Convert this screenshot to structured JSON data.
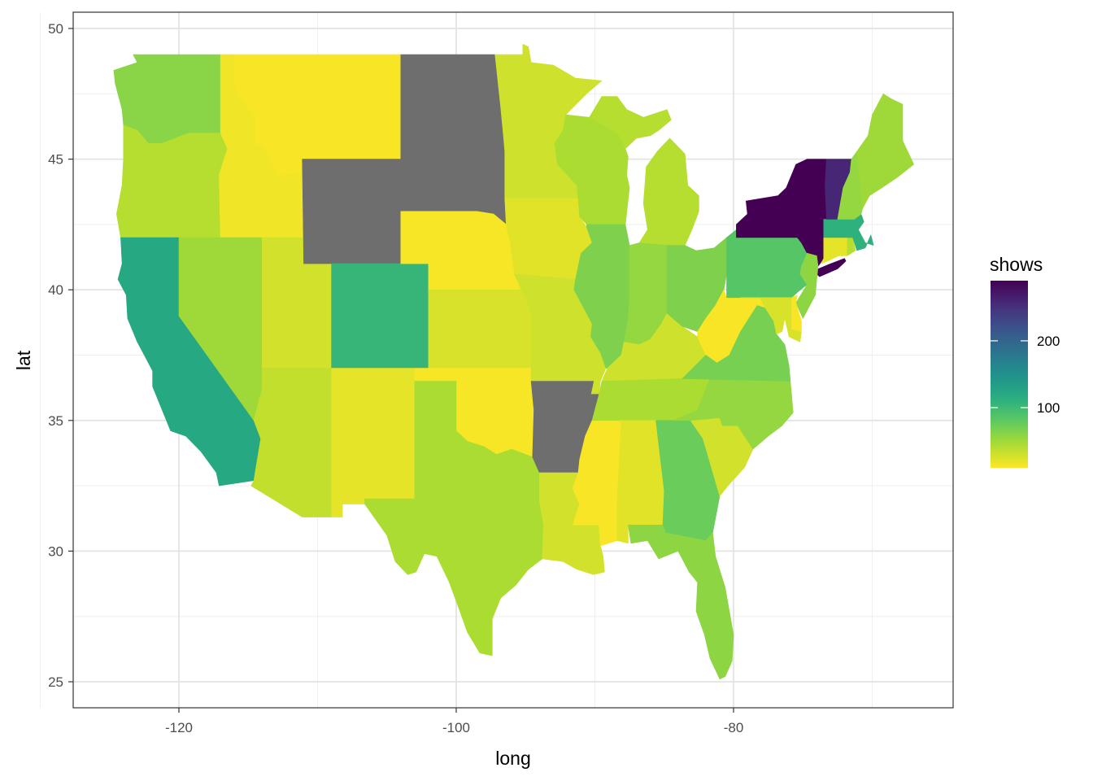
{
  "chart_data": {
    "type": "choropleth",
    "xlabel": "long",
    "ylabel": "lat",
    "xlim": [
      -128,
      -65
    ],
    "ylim": [
      24,
      50.6
    ],
    "x_ticks": [
      -120,
      -100,
      -80
    ],
    "y_ticks": [
      25,
      30,
      35,
      40,
      45,
      50
    ],
    "x_tick_labels": [
      "-120",
      "-100",
      "-80"
    ],
    "y_tick_labels": [
      "25",
      "30",
      "35",
      "40",
      "45",
      "50"
    ],
    "grid": true,
    "legend": {
      "title": "shows",
      "position": "right",
      "scale": "viridis (reversed)",
      "range": [
        10,
        290
      ],
      "ticks": [
        100,
        200
      ],
      "tick_labels": [
        "100",
        "200"
      ],
      "missing_color": "#6e6e6e"
    },
    "series": [
      {
        "state": "washington",
        "shows": 60
      },
      {
        "state": "oregon",
        "shows": 40
      },
      {
        "state": "california",
        "shows": 120
      },
      {
        "state": "idaho",
        "shows": 15
      },
      {
        "state": "montana",
        "shows": 12
      },
      {
        "state": "nevada",
        "shows": 50
      },
      {
        "state": "utah",
        "shows": 28
      },
      {
        "state": "arizona",
        "shows": 35
      },
      {
        "state": "wyoming",
        "shows": null
      },
      {
        "state": "colorado",
        "shows": 105
      },
      {
        "state": "new mexico",
        "shows": 20
      },
      {
        "state": "north dakota",
        "shows": null
      },
      {
        "state": "south dakota",
        "shows": null
      },
      {
        "state": "nebraska",
        "shows": 13
      },
      {
        "state": "kansas",
        "shows": 25
      },
      {
        "state": "oklahoma",
        "shows": 13
      },
      {
        "state": "texas",
        "shows": 45
      },
      {
        "state": "minnesota",
        "shows": 30
      },
      {
        "state": "iowa",
        "shows": 22
      },
      {
        "state": "missouri",
        "shows": 30
      },
      {
        "state": "arkansas",
        "shows": null
      },
      {
        "state": "louisiana",
        "shows": 28
      },
      {
        "state": "wisconsin",
        "shows": 45
      },
      {
        "state": "illinois",
        "shows": 65
      },
      {
        "state": "mississippi",
        "shows": 12
      },
      {
        "state": "michigan",
        "shows": 40
      },
      {
        "state": "indiana",
        "shows": 55
      },
      {
        "state": "kentucky",
        "shows": 30
      },
      {
        "state": "tennessee",
        "shows": 45
      },
      {
        "state": "alabama",
        "shows": 22
      },
      {
        "state": "georgia",
        "shows": 75
      },
      {
        "state": "florida",
        "shows": 58
      },
      {
        "state": "ohio",
        "shows": 65
      },
      {
        "state": "west virginia",
        "shows": 12
      },
      {
        "state": "south carolina",
        "shows": 28
      },
      {
        "state": "north carolina",
        "shows": 55
      },
      {
        "state": "virginia",
        "shows": 68
      },
      {
        "state": "pennsylvania",
        "shows": 85
      },
      {
        "state": "new york",
        "shows": 290
      },
      {
        "state": "new jersey",
        "shows": 58
      },
      {
        "state": "maryland",
        "shows": 25
      },
      {
        "state": "delaware",
        "shows": 12
      },
      {
        "state": "connecticut",
        "shows": 20
      },
      {
        "state": "rhode island",
        "shows": 40
      },
      {
        "state": "massachusetts",
        "shows": 110
      },
      {
        "state": "vermont",
        "shows": 260
      },
      {
        "state": "new hampshire",
        "shows": 55
      },
      {
        "state": "maine",
        "shows": 50
      }
    ]
  }
}
